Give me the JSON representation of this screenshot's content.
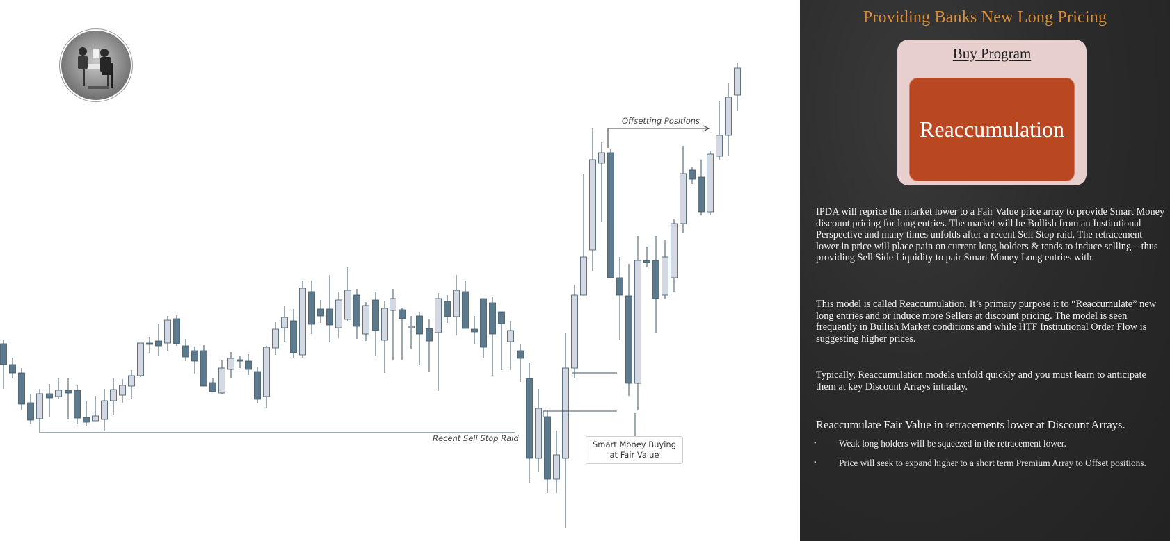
{
  "annotations": {
    "recent_sell_stop_raid": "Recent Sell Stop Raid",
    "offsetting_positions": "Offsetting Positions",
    "smart_money_buying": "Smart Money Buying at Fair Value"
  },
  "panel": {
    "title": "Providing Banks New Long Pricing",
    "program_title": "Buy Program",
    "model_name": "Reaccumulation",
    "paragraph_1": "IPDA will reprice the market lower to a Fair Value price array to provide Smart Money discount pricing for long entries.  The market will be Bullish from an Institutional Perspective and many times unfolds after a recent Sell Stop raid.  The retracement lower in price will place pain on current long holders & tends to induce selling – thus providing Sell Side Liquidity to pair Smart Money Long entries with.",
    "paragraph_2": "This model is called Reaccumulation.  It’s primary purpose it to “Reaccumulate” new long entries and or induce more Sellers at discount pricing.  The model is seen frequently in Bullish Market conditions and while HTF Institutional Order Flow is suggesting higher prices.",
    "paragraph_3": "Typically, Reaccumulation models unfold quickly and you must learn to anticipate them at key Discount Arrays intraday.",
    "subheading": "Reaccumulate Fair Value in retracements lower at Discount Arrays.",
    "bullet_marker": "•",
    "bullets": [
      "Weak long holders will be squeezed in the retracement lower.",
      "Price will seek to expand higher to a short term Premium Array to Offset positions."
    ]
  },
  "colors": {
    "panel_title": "#d98f3c",
    "program_box": "#e6cfcd",
    "model_box": "#b94822",
    "bull_candle": "#d3d8e2",
    "bear_candle": "#5d7a8d",
    "candle_outline": "#3d5566"
  }
}
